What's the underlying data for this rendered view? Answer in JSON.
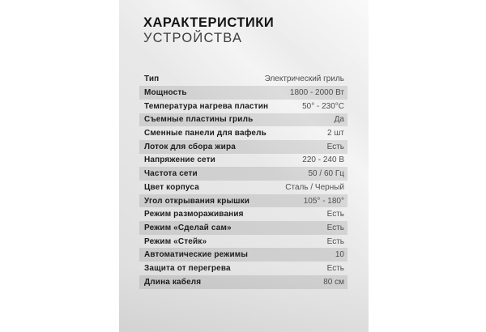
{
  "page": {
    "title_line1": "ХАРАКТЕРИСТИКИ",
    "title_line2": "УСТРОЙСТВА"
  },
  "colors": {
    "page_background": "#ffffff",
    "card_background": "#e8e8e8",
    "alt_row_background": "#d2d2d2",
    "label_text": "#1d1d1d",
    "value_text": "#4f4f4f"
  },
  "table": {
    "rows": [
      {
        "label": "Тип",
        "value": "Электрический гриль"
      },
      {
        "label": "Мощность",
        "value": "1800 - 2000 Вт"
      },
      {
        "label": "Температура нагрева пластин",
        "value": "50° - 230°C"
      },
      {
        "label": "Съемные пластины гриль",
        "value": "Да"
      },
      {
        "label": "Сменные панели для вафель",
        "value": "2 шт"
      },
      {
        "label": "Лоток для сбора жира",
        "value": "Есть"
      },
      {
        "label": "Напряжение сети",
        "value": "220 - 240 В"
      },
      {
        "label": "Частота сети",
        "value": "50 / 60 Гц"
      },
      {
        "label": "Цвет корпуса",
        "value": "Сталь / Черный"
      },
      {
        "label": "Угол открывания крышки",
        "value": "105° - 180°"
      },
      {
        "label": "Режим размораживания",
        "value": "Есть"
      },
      {
        "label": "Режим «Сделай сам»",
        "value": "Есть"
      },
      {
        "label": "Режим «Стейк»",
        "value": "Есть"
      },
      {
        "label": "Автоматические режимы",
        "value": "10"
      },
      {
        "label": "Защита от перегрева",
        "value": "Есть"
      },
      {
        "label": "Длина кабеля",
        "value": "80 см"
      }
    ]
  }
}
